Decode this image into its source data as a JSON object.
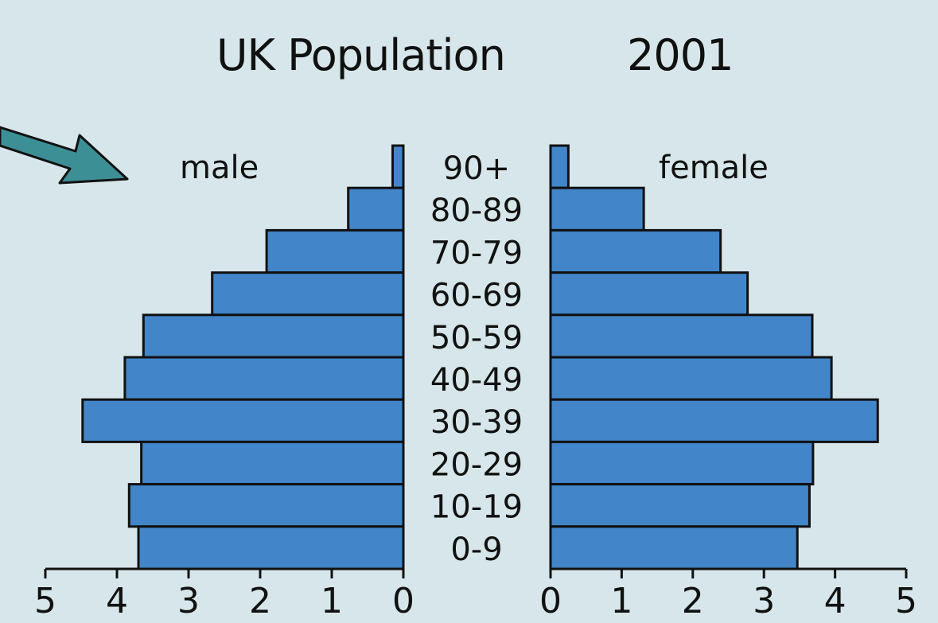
{
  "chart_data": {
    "type": "bar",
    "subtype": "population-pyramid",
    "title": "UK Population",
    "year": "2001",
    "categories": [
      "90+",
      "80-89",
      "70-79",
      "60-69",
      "50-59",
      "40-49",
      "30-39",
      "20-29",
      "10-19",
      "0-9"
    ],
    "series": [
      {
        "name": "male",
        "values": [
          0.15,
          0.77,
          1.91,
          2.67,
          3.63,
          3.89,
          4.48,
          3.66,
          3.83,
          3.7
        ]
      },
      {
        "name": "female",
        "values": [
          0.25,
          1.31,
          2.39,
          2.77,
          3.68,
          3.95,
          4.6,
          3.69,
          3.64,
          3.47
        ]
      }
    ],
    "xlabel": "",
    "ylabel": "",
    "xlim": [
      0,
      5
    ],
    "ticks": [
      "0",
      "1",
      "2",
      "3",
      "4",
      "5"
    ],
    "grid": false,
    "legend": "inline labels (male left, female right)",
    "colors": {
      "bar": "#4285c8",
      "bar_edge": "#111111",
      "background": "#d7e6ea",
      "arrow": "#3d8f96"
    }
  },
  "labels": {
    "title": "UK Population",
    "year": "2001",
    "male": "male",
    "female": "female"
  },
  "annotation": {
    "arrow": "teal arrow pointing toward the male label"
  }
}
